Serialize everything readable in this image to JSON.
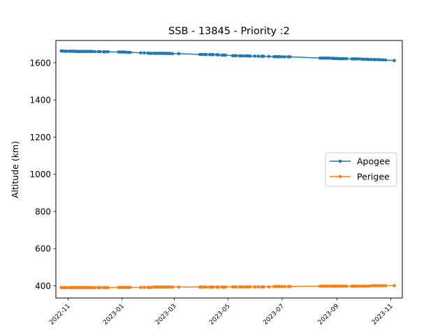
{
  "chart_data": {
    "type": "line",
    "title": "SSB - 13845 - Priority :2",
    "xlabel": "",
    "ylabel": "Altitude (km)",
    "xlim": [
      "2022-10-18",
      "2023-11-14"
    ],
    "ylim": [
      334,
      1720
    ],
    "grid": false,
    "legend_position": "center-right",
    "x_ticks": [
      "2022-11",
      "2023-01",
      "2023-03",
      "2023-05",
      "2023-07",
      "2023-09",
      "2023-11"
    ],
    "y_ticks": [
      400,
      600,
      800,
      1000,
      1200,
      1400,
      1600
    ],
    "series": [
      {
        "name": "Apogee",
        "color": "#1f77b4",
        "points": [
          [
            "2022-10-24",
            1664
          ],
          [
            "2022-10-26",
            1663
          ],
          [
            "2022-10-28",
            1662
          ],
          [
            "2022-10-30",
            1662
          ],
          [
            "2022-11-02",
            1662
          ],
          [
            "2022-11-04",
            1662
          ],
          [
            "2022-11-06",
            1662
          ],
          [
            "2022-11-08",
            1662
          ],
          [
            "2022-11-10",
            1661
          ],
          [
            "2022-11-12",
            1661
          ],
          [
            "2022-11-14",
            1661
          ],
          [
            "2022-11-16",
            1661
          ],
          [
            "2022-11-18",
            1661
          ],
          [
            "2022-11-20",
            1661
          ],
          [
            "2022-11-22",
            1661
          ],
          [
            "2022-11-24",
            1661
          ],
          [
            "2022-11-26",
            1661
          ],
          [
            "2022-11-28",
            1661
          ],
          [
            "2022-12-01",
            1660
          ],
          [
            "2022-12-05",
            1660
          ],
          [
            "2022-12-07",
            1660
          ],
          [
            "2022-12-11",
            1659
          ],
          [
            "2022-12-13",
            1659
          ],
          [
            "2022-12-16",
            1659
          ],
          [
            "2022-12-28",
            1658
          ],
          [
            "2022-12-30",
            1658
          ],
          [
            "2023-01-01",
            1658
          ],
          [
            "2023-01-03",
            1658
          ],
          [
            "2023-01-05",
            1657
          ],
          [
            "2023-01-08",
            1656
          ],
          [
            "2023-01-10",
            1656
          ],
          [
            "2023-01-22",
            1653
          ],
          [
            "2023-01-26",
            1653
          ],
          [
            "2023-01-30",
            1652
          ],
          [
            "2023-02-01",
            1651
          ],
          [
            "2023-02-03",
            1651
          ],
          [
            "2023-02-06",
            1651
          ],
          [
            "2023-02-08",
            1651
          ],
          [
            "2023-02-10",
            1651
          ],
          [
            "2023-02-12",
            1651
          ],
          [
            "2023-02-14",
            1651
          ],
          [
            "2023-02-16",
            1651
          ],
          [
            "2023-02-18",
            1651
          ],
          [
            "2023-02-20",
            1650
          ],
          [
            "2023-02-22",
            1650
          ],
          [
            "2023-02-24",
            1650
          ],
          [
            "2023-02-27",
            1649
          ],
          [
            "2023-03-06",
            1649
          ],
          [
            "2023-03-30",
            1645
          ],
          [
            "2023-04-01",
            1645
          ],
          [
            "2023-04-04",
            1645
          ],
          [
            "2023-04-06",
            1644
          ],
          [
            "2023-04-10",
            1644
          ],
          [
            "2023-04-12",
            1644
          ],
          [
            "2023-04-14",
            1644
          ],
          [
            "2023-04-18",
            1643
          ],
          [
            "2023-04-20",
            1643
          ],
          [
            "2023-04-24",
            1641
          ],
          [
            "2023-04-26",
            1641
          ],
          [
            "2023-04-28",
            1641
          ],
          [
            "2023-05-06",
            1638
          ],
          [
            "2023-05-08",
            1638
          ],
          [
            "2023-05-10",
            1638
          ],
          [
            "2023-05-14",
            1637
          ],
          [
            "2023-05-16",
            1637
          ],
          [
            "2023-05-19",
            1637
          ],
          [
            "2023-05-22",
            1637
          ],
          [
            "2023-05-24",
            1637
          ],
          [
            "2023-05-26",
            1636
          ],
          [
            "2023-05-31",
            1636
          ],
          [
            "2023-06-04",
            1635
          ],
          [
            "2023-06-08",
            1635
          ],
          [
            "2023-06-10",
            1635
          ],
          [
            "2023-06-16",
            1634
          ],
          [
            "2023-06-22",
            1633
          ],
          [
            "2023-06-24",
            1633
          ],
          [
            "2023-06-26",
            1633
          ],
          [
            "2023-06-28",
            1633
          ],
          [
            "2023-07-01",
            1632
          ],
          [
            "2023-07-04",
            1632
          ],
          [
            "2023-07-08",
            1632
          ],
          [
            "2023-07-10",
            1632
          ],
          [
            "2023-08-13",
            1625
          ],
          [
            "2023-08-15",
            1625
          ],
          [
            "2023-08-17",
            1625
          ],
          [
            "2023-08-19",
            1625
          ],
          [
            "2023-08-21",
            1625
          ],
          [
            "2023-08-23",
            1625
          ],
          [
            "2023-08-26",
            1624
          ],
          [
            "2023-08-28",
            1624
          ],
          [
            "2023-08-30",
            1623
          ],
          [
            "2023-09-01",
            1623
          ],
          [
            "2023-09-03",
            1622
          ],
          [
            "2023-09-05",
            1622
          ],
          [
            "2023-09-07",
            1622
          ],
          [
            "2023-09-09",
            1622
          ],
          [
            "2023-09-12",
            1622
          ],
          [
            "2023-09-18",
            1621
          ],
          [
            "2023-09-20",
            1621
          ],
          [
            "2023-09-22",
            1621
          ],
          [
            "2023-09-24",
            1621
          ],
          [
            "2023-09-27",
            1621
          ],
          [
            "2023-09-30",
            1619
          ],
          [
            "2023-10-02",
            1619
          ],
          [
            "2023-10-05",
            1619
          ],
          [
            "2023-10-07",
            1618
          ],
          [
            "2023-10-10",
            1618
          ],
          [
            "2023-10-13",
            1617
          ],
          [
            "2023-10-15",
            1617
          ],
          [
            "2023-10-18",
            1617
          ],
          [
            "2023-10-20",
            1616
          ],
          [
            "2023-10-23",
            1616
          ],
          [
            "2023-10-26",
            1615
          ],
          [
            "2023-11-05",
            1612
          ]
        ]
      },
      {
        "name": "Perigee",
        "color": "#ff7f0e",
        "points": [
          [
            "2022-10-24",
            390
          ],
          [
            "2022-10-26",
            390
          ],
          [
            "2022-10-28",
            390
          ],
          [
            "2022-10-30",
            390
          ],
          [
            "2022-11-02",
            390
          ],
          [
            "2022-11-04",
            390
          ],
          [
            "2022-11-06",
            390
          ],
          [
            "2022-11-08",
            390
          ],
          [
            "2022-11-10",
            390
          ],
          [
            "2022-11-12",
            390
          ],
          [
            "2022-11-14",
            390
          ],
          [
            "2022-11-16",
            390
          ],
          [
            "2022-11-18",
            390
          ],
          [
            "2022-11-20",
            390
          ],
          [
            "2022-11-22",
            390
          ],
          [
            "2022-11-24",
            390
          ],
          [
            "2022-11-26",
            390
          ],
          [
            "2022-11-28",
            390
          ],
          [
            "2022-12-01",
            390
          ],
          [
            "2022-12-05",
            390
          ],
          [
            "2022-12-07",
            390
          ],
          [
            "2022-12-11",
            390
          ],
          [
            "2022-12-13",
            390
          ],
          [
            "2022-12-16",
            390
          ],
          [
            "2022-12-28",
            391
          ],
          [
            "2022-12-30",
            391
          ],
          [
            "2023-01-01",
            391
          ],
          [
            "2023-01-03",
            391
          ],
          [
            "2023-01-05",
            391
          ],
          [
            "2023-01-08",
            391
          ],
          [
            "2023-01-10",
            391
          ],
          [
            "2023-01-22",
            391
          ],
          [
            "2023-01-26",
            391
          ],
          [
            "2023-01-30",
            391
          ],
          [
            "2023-02-01",
            391
          ],
          [
            "2023-02-03",
            391
          ],
          [
            "2023-02-06",
            393
          ],
          [
            "2023-02-08",
            393
          ],
          [
            "2023-02-10",
            393
          ],
          [
            "2023-02-12",
            393
          ],
          [
            "2023-02-14",
            393
          ],
          [
            "2023-02-16",
            393
          ],
          [
            "2023-02-18",
            393
          ],
          [
            "2023-02-20",
            393
          ],
          [
            "2023-02-22",
            393
          ],
          [
            "2023-02-24",
            393
          ],
          [
            "2023-02-27",
            393
          ],
          [
            "2023-03-06",
            393
          ],
          [
            "2023-03-30",
            393
          ],
          [
            "2023-04-01",
            393
          ],
          [
            "2023-04-04",
            393
          ],
          [
            "2023-04-06",
            393
          ],
          [
            "2023-04-10",
            393
          ],
          [
            "2023-04-12",
            393
          ],
          [
            "2023-04-14",
            393
          ],
          [
            "2023-04-18",
            393
          ],
          [
            "2023-04-20",
            393
          ],
          [
            "2023-04-24",
            393
          ],
          [
            "2023-04-26",
            393
          ],
          [
            "2023-04-28",
            393
          ],
          [
            "2023-05-06",
            394
          ],
          [
            "2023-05-08",
            394
          ],
          [
            "2023-05-10",
            394
          ],
          [
            "2023-05-14",
            394
          ],
          [
            "2023-05-16",
            394
          ],
          [
            "2023-05-19",
            394
          ],
          [
            "2023-05-22",
            394
          ],
          [
            "2023-05-24",
            394
          ],
          [
            "2023-05-26",
            394
          ],
          [
            "2023-05-31",
            394
          ],
          [
            "2023-06-04",
            394
          ],
          [
            "2023-06-08",
            394
          ],
          [
            "2023-06-10",
            394
          ],
          [
            "2023-06-16",
            394
          ],
          [
            "2023-06-22",
            396
          ],
          [
            "2023-06-24",
            396
          ],
          [
            "2023-06-26",
            396
          ],
          [
            "2023-06-28",
            396
          ],
          [
            "2023-07-01",
            396
          ],
          [
            "2023-07-04",
            396
          ],
          [
            "2023-07-08",
            396
          ],
          [
            "2023-07-10",
            396
          ],
          [
            "2023-08-13",
            398
          ],
          [
            "2023-08-15",
            398
          ],
          [
            "2023-08-17",
            398
          ],
          [
            "2023-08-19",
            398
          ],
          [
            "2023-08-21",
            398
          ],
          [
            "2023-08-23",
            398
          ],
          [
            "2023-08-26",
            398
          ],
          [
            "2023-08-28",
            398
          ],
          [
            "2023-08-30",
            398
          ],
          [
            "2023-09-01",
            398
          ],
          [
            "2023-09-03",
            398
          ],
          [
            "2023-09-05",
            398
          ],
          [
            "2023-09-07",
            398
          ],
          [
            "2023-09-09",
            398
          ],
          [
            "2023-09-12",
            398
          ],
          [
            "2023-09-18",
            398
          ],
          [
            "2023-09-20",
            398
          ],
          [
            "2023-09-22",
            398
          ],
          [
            "2023-09-24",
            398
          ],
          [
            "2023-09-27",
            398
          ],
          [
            "2023-09-30",
            398
          ],
          [
            "2023-10-02",
            398
          ],
          [
            "2023-10-05",
            398
          ],
          [
            "2023-10-07",
            398
          ],
          [
            "2023-10-10",
            400
          ],
          [
            "2023-10-13",
            400
          ],
          [
            "2023-10-15",
            400
          ],
          [
            "2023-10-18",
            400
          ],
          [
            "2023-10-20",
            400
          ],
          [
            "2023-10-23",
            400
          ],
          [
            "2023-10-26",
            400
          ],
          [
            "2023-11-05",
            401
          ]
        ]
      }
    ]
  }
}
